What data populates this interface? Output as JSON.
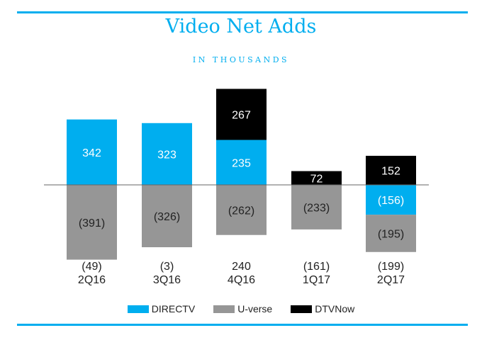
{
  "chart_data": {
    "type": "bar",
    "stacked": true,
    "title": "Video Net Adds",
    "subtitle": "IN THOUSANDS",
    "categories": [
      "2Q16",
      "3Q16",
      "4Q16",
      "1Q17",
      "2Q17"
    ],
    "series": [
      {
        "name": "DIRECTV",
        "color": "#00aeef",
        "values": [
          342,
          323,
          235,
          null,
          -156
        ],
        "labels": [
          "342",
          "323",
          "235",
          "",
          "(156)"
        ],
        "label_color": "#ffffff"
      },
      {
        "name": "U-verse",
        "color": "#969696",
        "values": [
          -391,
          -326,
          -262,
          -233,
          -195
        ],
        "labels": [
          "(391)",
          "(326)",
          "(262)",
          "(233)",
          "(195)"
        ],
        "label_color": "#222222"
      },
      {
        "name": "DTVNow",
        "color": "#000000",
        "values": [
          null,
          null,
          267,
          72,
          152
        ],
        "labels": [
          "",
          "",
          "267",
          "72",
          "152"
        ],
        "label_color": "#ffffff"
      }
    ],
    "totals": [
      -49,
      -3,
      240,
      -161,
      -199
    ],
    "total_labels": [
      "(49)",
      "(3)",
      "240",
      "(161)",
      "(199)"
    ],
    "legend_position": "bottom",
    "grid": false
  }
}
